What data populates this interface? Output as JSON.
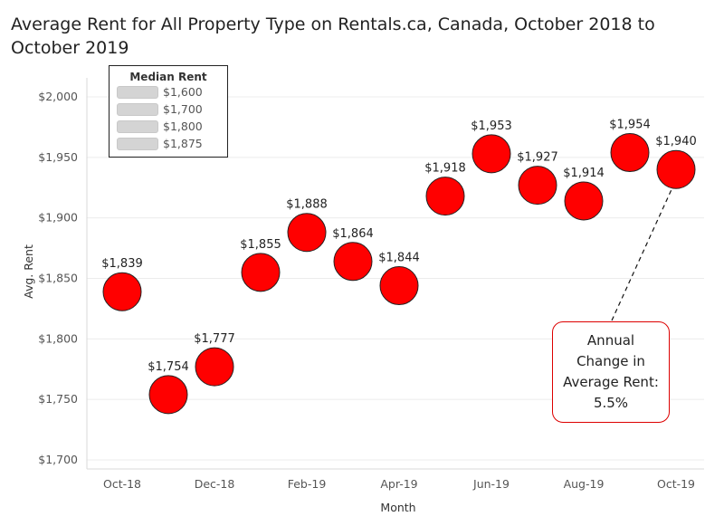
{
  "chart_data": {
    "type": "scatter",
    "title": "Average Rent for All Property Type on Rentals.ca, Canada, October 2018 to October 2019",
    "xlabel": "Month",
    "ylabel": "Avg. Rent",
    "ylim": [
      1700,
      2000
    ],
    "yticks": [
      "$2,000",
      "$1,950",
      "$1,900",
      "$1,850",
      "$1,800",
      "$1,750",
      "$1,700"
    ],
    "ytick_values": [
      2000,
      1950,
      1900,
      1850,
      1800,
      1750,
      1700
    ],
    "xticks": [
      "Oct-18",
      "Dec-18",
      "Feb-19",
      "Apr-19",
      "Jun-19",
      "Aug-19",
      "Oct-19"
    ],
    "x": [
      "Oct-18",
      "Nov-18",
      "Dec-18",
      "Jan-19",
      "Feb-19",
      "Mar-19",
      "Apr-19",
      "May-19",
      "Jun-19",
      "Jul-19",
      "Aug-19",
      "Sep-19",
      "Oct-19"
    ],
    "values": [
      1839,
      1754,
      1777,
      1855,
      1888,
      1864,
      1844,
      1918,
      1953,
      1927,
      1914,
      1954,
      1940
    ],
    "data_labels": [
      "$1,839",
      "$1,754",
      "$1,777",
      "$1,855",
      "$1,888",
      "$1,864",
      "$1,844",
      "$1,918",
      "$1,953",
      "$1,927",
      "$1,914",
      "$1,954",
      "$1,940"
    ],
    "marker_color": "#ff0000",
    "grid": true,
    "legend": {
      "title": "Median Rent",
      "placement": "top-left",
      "items": [
        "$1,600",
        "$1,700",
        "$1,800",
        "$1,875"
      ]
    },
    "annotation": {
      "text": "Annual Change in Average Rent: 5.5%",
      "target": "Oct-19",
      "border_color": "#dd0000"
    }
  }
}
